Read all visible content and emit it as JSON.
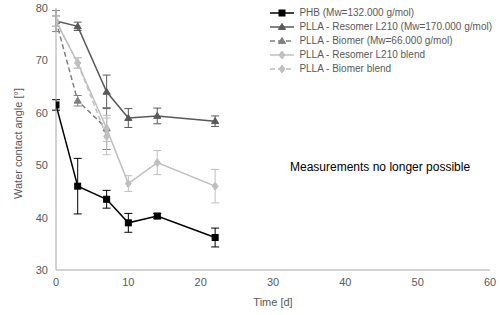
{
  "chart_data": {
    "type": "line",
    "xlabel": "Time [d]",
    "ylabel": "Water contact angle [°]",
    "annotation": "Measurements no longer possible",
    "xlim": [
      0,
      60
    ],
    "xticks": [
      0,
      10,
      20,
      30,
      40,
      50,
      60
    ],
    "ylim": [
      30,
      80
    ],
    "yticks": [
      30,
      40,
      50,
      60,
      70,
      80
    ],
    "grid": false,
    "legend": "upper right",
    "x": [
      0,
      3,
      7,
      10,
      14,
      22
    ],
    "series": [
      {
        "name": "PHB (Mw=132.000 g/mol)",
        "color": "#000000",
        "marker": "square",
        "line_style": "solid",
        "values": [
          61.5,
          46,
          43.5,
          39,
          40.3,
          36.2
        ],
        "error": [
          1,
          5.3,
          1.7,
          1.8,
          0.5,
          1.8
        ]
      },
      {
        "name": "PLLA - Resomer L210 (Mw=170.000 g/mol)",
        "color": "#595959",
        "marker": "triangle",
        "line_style": "solid",
        "values": [
          77.5,
          76.5,
          64,
          59,
          59.4,
          58.4
        ],
        "error": [
          1,
          0.8,
          3.2,
          1.8,
          1.5,
          1
        ]
      },
      {
        "name": "PLLA - Biomer (Mw=66.000 g/mol)",
        "color": "#808080",
        "marker": "triangle",
        "line_style": "dashed",
        "values": [
          77.5,
          62.3,
          57,
          null,
          null,
          null
        ],
        "error": [
          2,
          1,
          4,
          null,
          null,
          null
        ]
      },
      {
        "name": "PLLA - Resomer L210 blend",
        "color": "#bfbfbf",
        "marker": "diamond",
        "line_style": "solid",
        "values": [
          77.5,
          69.5,
          57,
          46.5,
          50.5,
          46
        ],
        "error": [
          1,
          1,
          2.5,
          1.5,
          2.3,
          3.2
        ]
      },
      {
        "name": "PLLA - Biomer blend",
        "color": "#bfbfbf",
        "marker": "diamond",
        "line_style": "dashed",
        "values": [
          77.5,
          69.5,
          55.5,
          null,
          null,
          null
        ],
        "error": [
          1,
          1,
          3.5,
          null,
          null,
          null
        ]
      }
    ]
  }
}
